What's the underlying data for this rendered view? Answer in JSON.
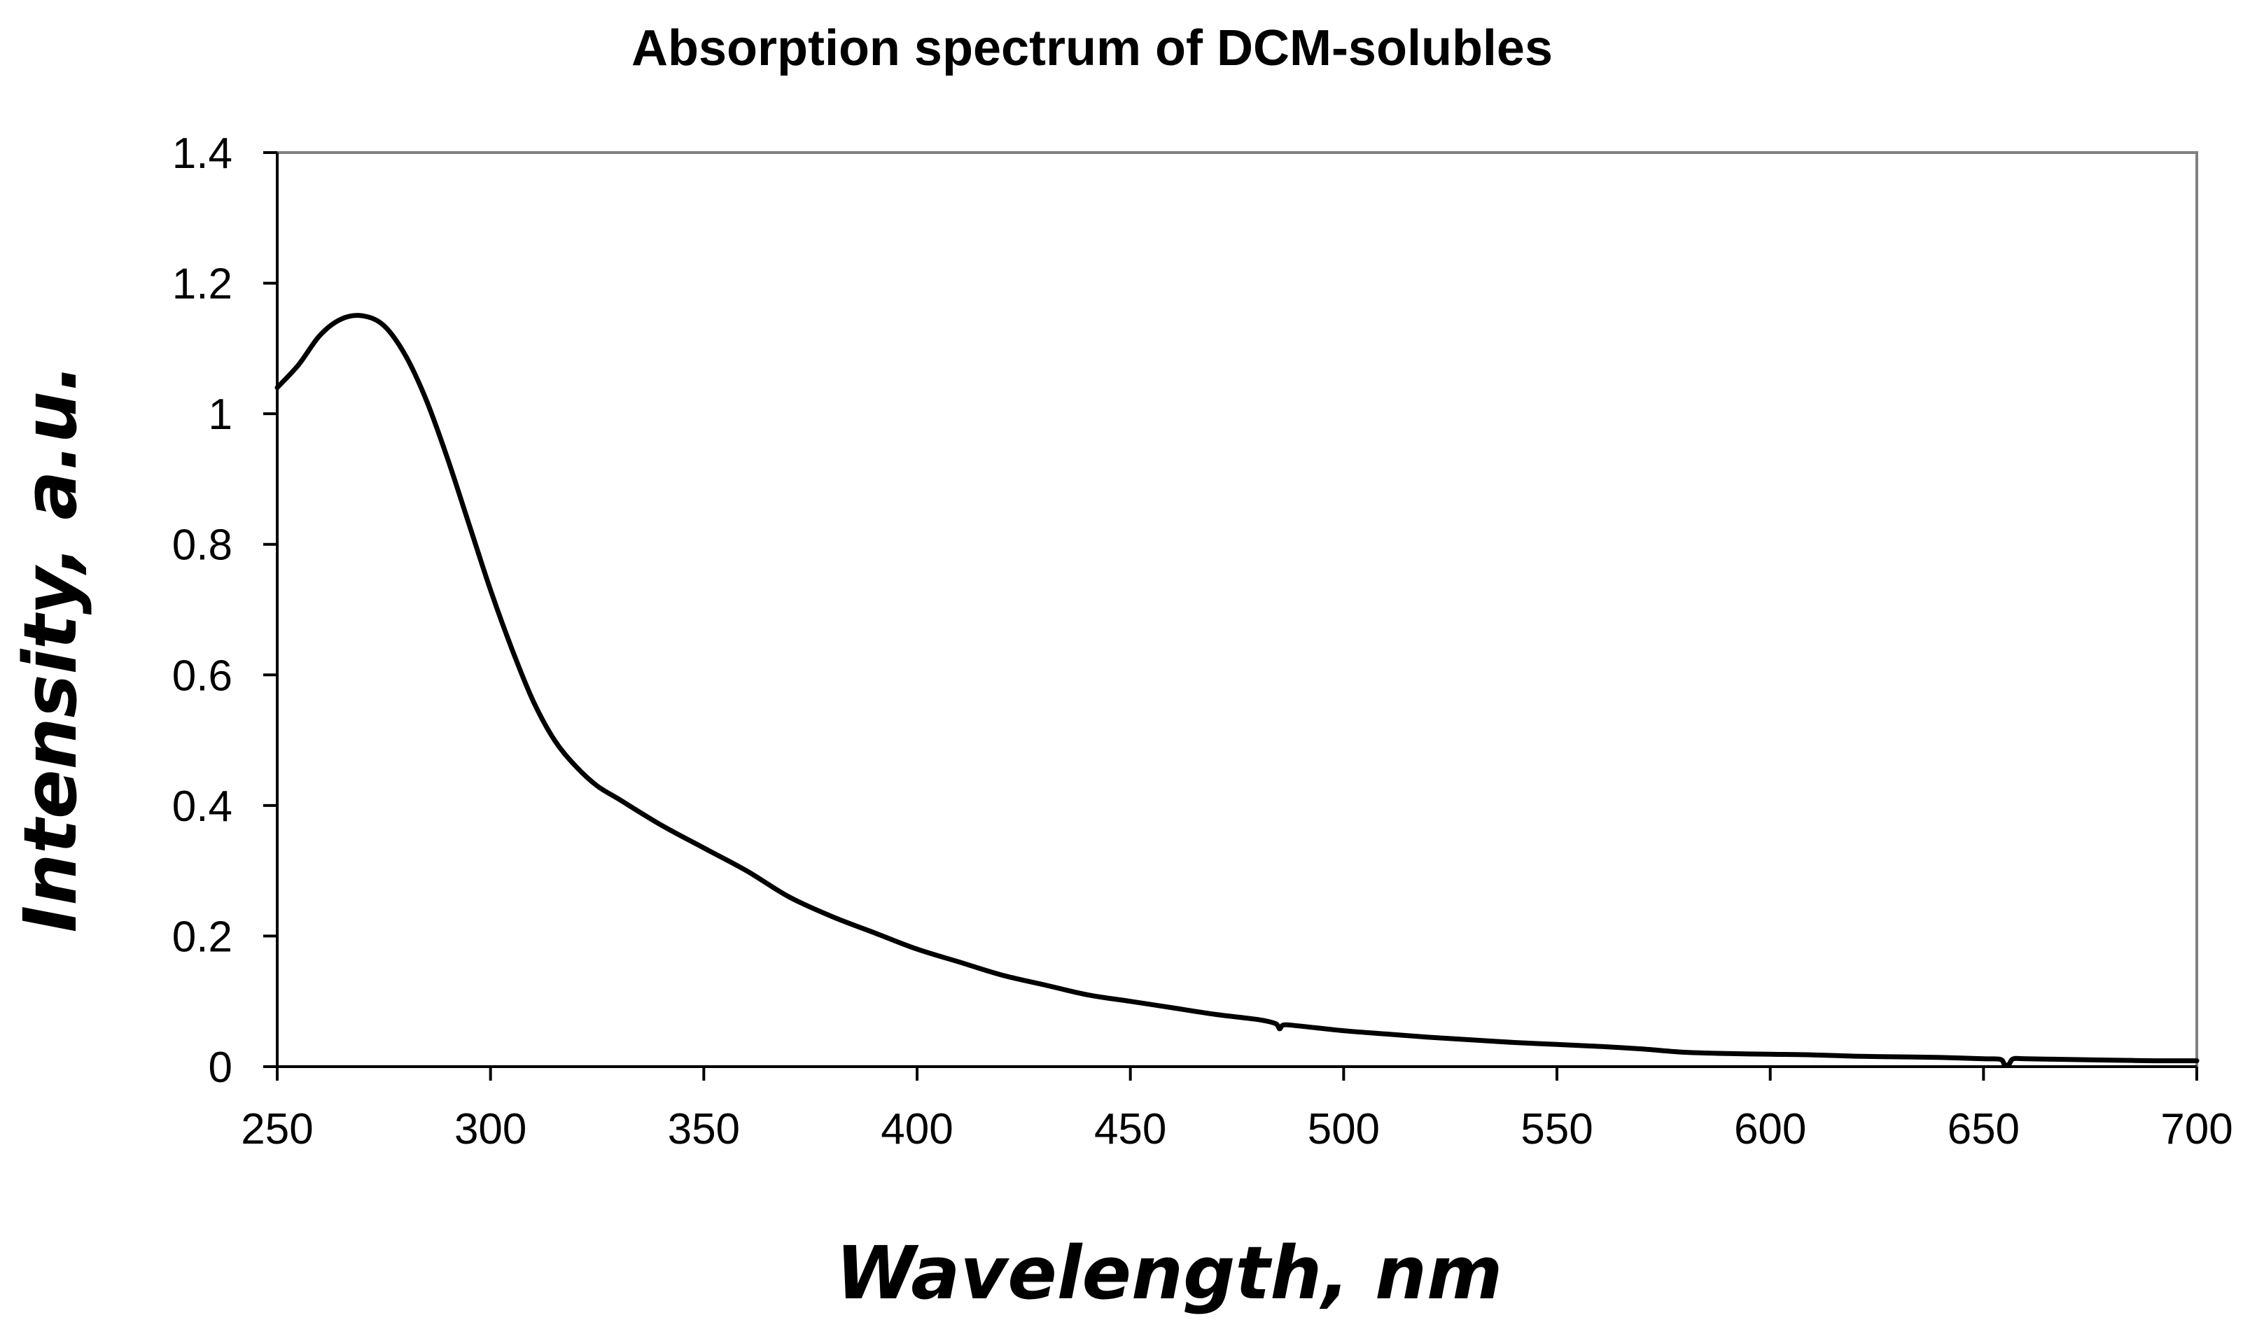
{
  "chart_data": {
    "type": "line",
    "title": "Absorption spectrum of DCM-solubles",
    "xlabel": "Wavelength, nm",
    "ylabel": "Intensity, a.u.",
    "xlim": [
      250,
      700
    ],
    "ylim": [
      0,
      1.4
    ],
    "x_ticks": [
      "250",
      "300",
      "350",
      "400",
      "450",
      "500",
      "550",
      "600",
      "650",
      "700"
    ],
    "y_ticks": [
      "0",
      "0.2",
      "0.4",
      "0.6",
      "0.8",
      "1",
      "1.2",
      "1.4"
    ],
    "grid": false,
    "legend": "none",
    "line_color": "#000000",
    "series": [
      {
        "name": "DCM-solubles",
        "x": [
          250,
          255,
          260,
          265,
          270,
          275,
          280,
          285,
          290,
          295,
          300,
          305,
          310,
          315,
          320,
          325,
          330,
          340,
          350,
          360,
          370,
          380,
          390,
          400,
          410,
          420,
          430,
          440,
          450,
          460,
          470,
          480,
          484,
          485,
          486,
          490,
          500,
          510,
          520,
          530,
          540,
          550,
          560,
          570,
          580,
          590,
          600,
          610,
          620,
          630,
          640,
          650,
          654,
          655,
          656,
          657,
          660,
          670,
          680,
          690,
          700
        ],
        "y": [
          1.04,
          1.075,
          1.12,
          1.145,
          1.15,
          1.135,
          1.09,
          1.02,
          0.93,
          0.83,
          0.73,
          0.64,
          0.56,
          0.5,
          0.46,
          0.43,
          0.41,
          0.37,
          0.335,
          0.3,
          0.26,
          0.23,
          0.205,
          0.18,
          0.16,
          0.14,
          0.125,
          0.11,
          0.1,
          0.09,
          0.08,
          0.072,
          0.066,
          0.058,
          0.064,
          0.062,
          0.055,
          0.05,
          0.045,
          0.041,
          0.037,
          0.034,
          0.031,
          0.027,
          0.022,
          0.02,
          0.019,
          0.018,
          0.016,
          0.015,
          0.014,
          0.012,
          0.011,
          0.002,
          0.004,
          0.012,
          0.012,
          0.011,
          0.01,
          0.009,
          0.009
        ]
      }
    ]
  }
}
